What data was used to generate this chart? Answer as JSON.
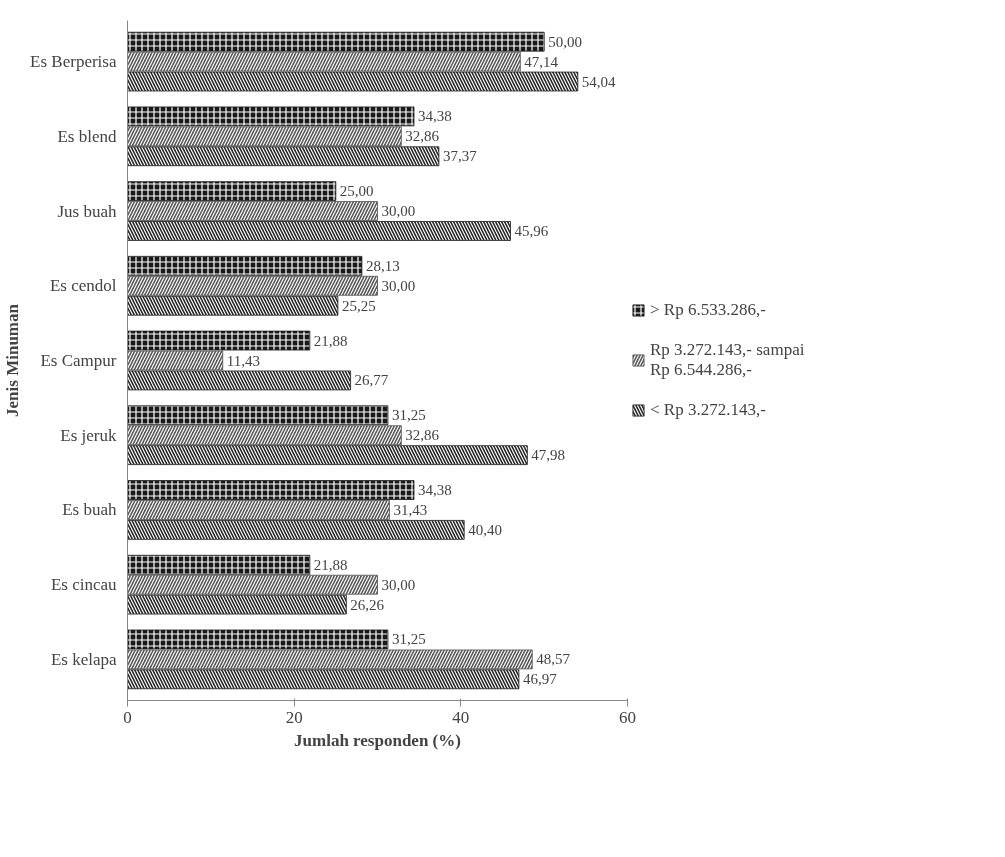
{
  "chart_data": {
    "type": "bar",
    "orientation": "horizontal",
    "xlabel": "Jumlah responden (%)",
    "ylabel": "Jenis Minuman",
    "categories": [
      "Es Berperisa",
      "Es blend",
      "Jus buah",
      "Es cendol",
      "Es Campur",
      "Es jeruk",
      "Es buah",
      "Es cincau",
      "Es kelapa"
    ],
    "series": [
      {
        "name": "> Rp 6.533.286,-",
        "color": "#1a1a1a",
        "values": [
          50.0,
          34.38,
          25.0,
          28.13,
          21.88,
          31.25,
          34.38,
          21.88,
          31.25
        ]
      },
      {
        "name": "Rp 3.272.143,- sampai Rp 6.544.286,-",
        "color": "#555555",
        "values": [
          47.14,
          32.86,
          30.0,
          30.0,
          11.43,
          32.86,
          31.43,
          30.0,
          48.57
        ]
      },
      {
        "name": "< Rp 3.272.143,-",
        "color": "#222222",
        "values": [
          54.04,
          37.37,
          45.96,
          25.25,
          26.77,
          47.98,
          40.4,
          26.26,
          46.97
        ]
      }
    ],
    "value_labels": [
      [
        "50,00",
        "34,38",
        "25,00",
        "28,13",
        "21,88",
        "31,25",
        "34,38",
        "21,88",
        "31,25"
      ],
      [
        "47,14",
        "32,86",
        "30,00",
        "30,00",
        "11,43",
        "32,86",
        "31,43",
        "30,00",
        "48,57"
      ],
      [
        "54,04",
        "37,37",
        "45,96",
        "25,25",
        "26,77",
        "47,98",
        "40,40",
        "26,26",
        "46,97"
      ]
    ],
    "xlim": [
      0,
      60
    ],
    "xticks": [
      0,
      20,
      40,
      60
    ],
    "grid": false,
    "legend": "right"
  }
}
